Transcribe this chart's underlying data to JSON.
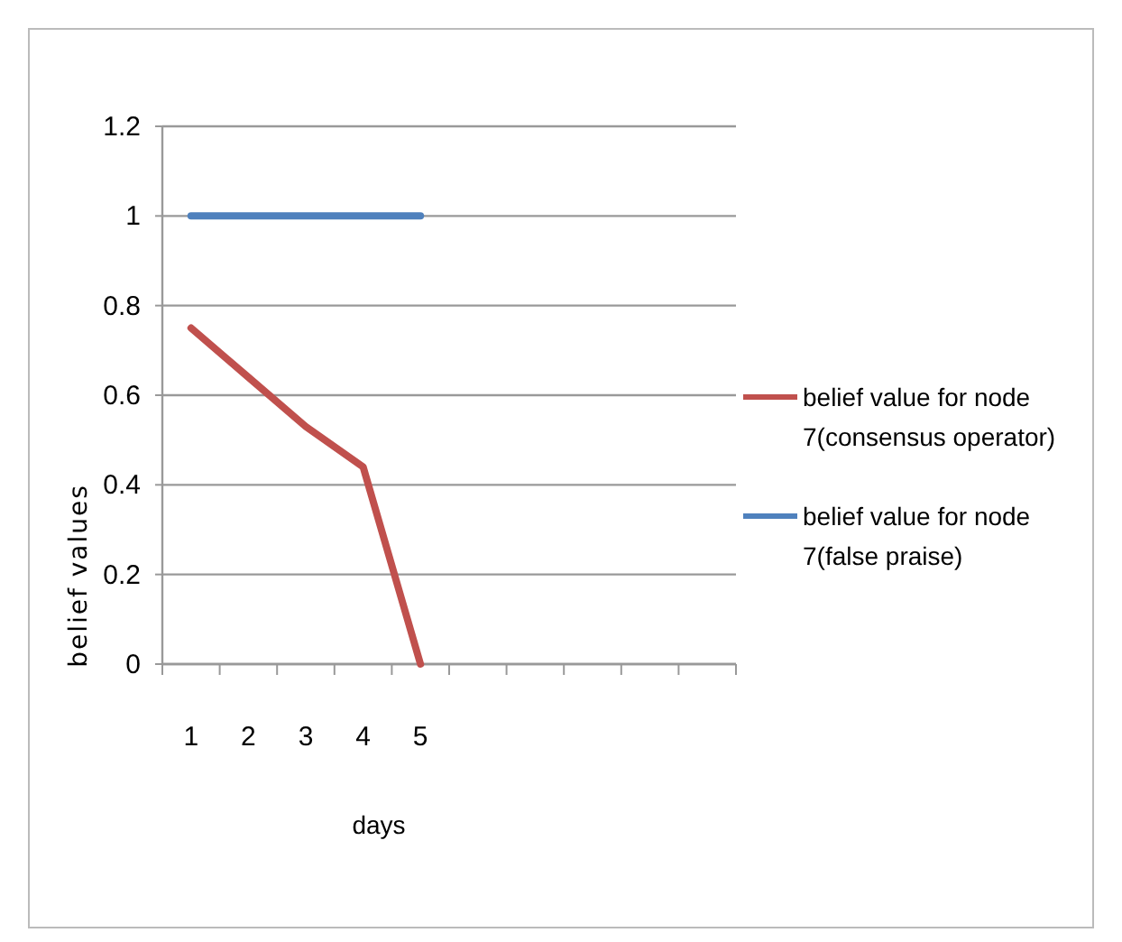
{
  "chart_data": {
    "type": "line",
    "xlabel": "days",
    "ylabel": "belief values",
    "categories": [
      "1",
      "2",
      "3",
      "4",
      "5",
      null,
      null,
      null,
      null,
      null
    ],
    "series": [
      {
        "name": "belief value for node 7(consensus operator)",
        "color": "#c0504d",
        "values": [
          0.75,
          0.64,
          0.53,
          0.44,
          0,
          null,
          null,
          null,
          null,
          null
        ]
      },
      {
        "name": "belief value for node 7(false praise)",
        "color": "#4f81bd",
        "values": [
          1,
          1,
          1,
          1,
          1,
          null,
          null,
          null,
          null,
          null
        ]
      }
    ],
    "ylim": [
      0,
      1.2
    ],
    "yticks": [
      0,
      0.2,
      0.4,
      0.6,
      0.8,
      1,
      1.2
    ],
    "grid": "y",
    "legend": "right",
    "marker": "none",
    "line_style": "solid"
  }
}
